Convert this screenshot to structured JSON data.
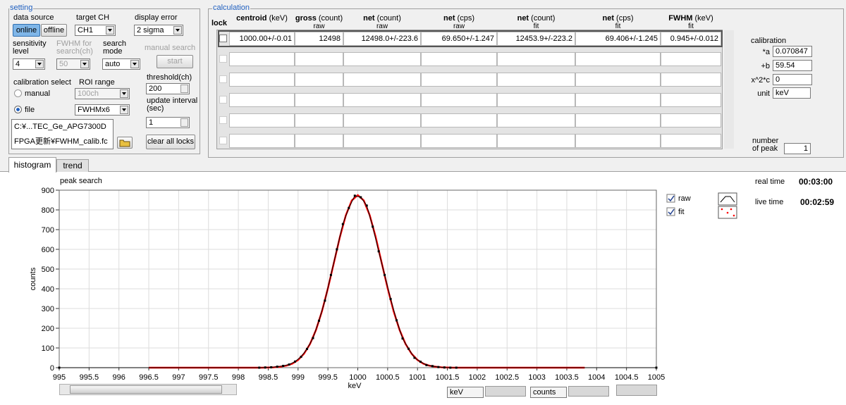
{
  "setting": {
    "title": "setting",
    "data_source": {
      "label": "data source",
      "online": "online",
      "offline": "offline"
    },
    "target_ch": {
      "label": "target CH",
      "value": "CH1"
    },
    "display_error": {
      "label": "display error",
      "value": "2 sigma"
    },
    "sensitivity": {
      "label": "sensitivity level",
      "value": "4"
    },
    "fwhm_search": {
      "label": "FWHM for search(ch)",
      "value": "50"
    },
    "search_mode": {
      "label": "search mode",
      "value": "auto"
    },
    "manual_search": {
      "label": "manual search",
      "button": "start"
    },
    "calibration_select": {
      "label": "calibration select",
      "manual": "manual",
      "file": "file"
    },
    "roi_range": {
      "label": "ROI range",
      "manual_value": "100ch",
      "file_value": "FWHMx6"
    },
    "threshold": {
      "label": "threshold(ch)",
      "value": "200"
    },
    "update_interval": {
      "label": "update interval (sec)",
      "value": "1"
    },
    "file_path": [
      "C:¥...TEC_Ge_APG7300D",
      "FPGA更新¥FWHM_calib.fc"
    ],
    "clear_button": "clear all locks"
  },
  "calculation": {
    "title": "calculation",
    "lock": "lock",
    "columns": [
      {
        "name": "centroid",
        "unit": "(keV)"
      },
      {
        "name": "gross",
        "unit": "(count)",
        "sub": "raw"
      },
      {
        "name": "net",
        "unit": "(count)",
        "sub": "raw"
      },
      {
        "name": "net",
        "unit": "(cps)",
        "sub": "raw"
      },
      {
        "name": "net",
        "unit": "(count)",
        "sub": "fit"
      },
      {
        "name": "net",
        "unit": "(cps)",
        "sub": "fit"
      },
      {
        "name": "FWHM",
        "unit": "(keV)",
        "sub": "fit"
      }
    ],
    "rows": [
      [
        "1000.00+/-0.01",
        "12498",
        "12498.0+/-223.6",
        "69.650+/-1.247",
        "12453.9+/-223.2",
        "69.406+/-1.245",
        "0.945+/-0.012"
      ]
    ]
  },
  "calibration": {
    "title": "calibration",
    "a_label": "*a",
    "a": "0.070847",
    "b_label": "+b",
    "b": "59.54",
    "c_label": "x^2*c",
    "c": "0",
    "unit_label": "unit",
    "unit": "keV",
    "peaks_label": "number of peak",
    "peaks": "1"
  },
  "tabs": [
    "histogram",
    "trend"
  ],
  "times": {
    "real_label": "real time",
    "real": "00:03:00",
    "live_label": "live time",
    "live": "00:02:59"
  },
  "graph_controls": {
    "x_unit": "keV",
    "y_unit": "counts"
  },
  "chart_data": {
    "type": "line",
    "title": "peak search",
    "xlabel": "keV",
    "ylabel": "counts",
    "xlim": [
      995,
      1005
    ],
    "ylim": [
      0,
      900
    ],
    "xticks": [
      995,
      995.5,
      996,
      996.5,
      997,
      997.5,
      998,
      998.5,
      999,
      999.5,
      1000,
      1000.5,
      1001,
      1001.5,
      1002,
      1002.5,
      1003,
      1003.5,
      1004,
      1004.5,
      1005
    ],
    "yticks": [
      0,
      100,
      200,
      300,
      400,
      500,
      600,
      700,
      800,
      900
    ],
    "grid": true,
    "series": [
      {
        "name": "raw",
        "color": "#000000",
        "marker": "square",
        "x": [
          995,
          998.35,
          998.45,
          998.55,
          998.65,
          998.75,
          998.85,
          998.95,
          999.05,
          999.15,
          999.25,
          999.35,
          999.45,
          999.55,
          999.65,
          999.75,
          999.85,
          999.95,
          1000.05,
          1000.15,
          1000.25,
          1000.35,
          1000.45,
          1000.55,
          1000.65,
          1000.75,
          1000.85,
          1000.95,
          1001.05,
          1001.15,
          1001.25,
          1001.35,
          1001.45,
          1001.55,
          1001.65,
          1005
        ],
        "values": [
          0,
          0,
          1,
          2,
          5,
          9,
          16,
          31,
          55,
          95,
          150,
          238,
          340,
          470,
          600,
          728,
          810,
          872,
          864,
          822,
          715,
          590,
          470,
          348,
          240,
          148,
          96,
          50,
          30,
          13,
          8,
          3,
          1,
          0,
          0,
          0
        ]
      },
      {
        "name": "fit",
        "color": "#ff0000",
        "x": [
          996.5,
          997.5,
          998.4,
          998.5,
          998.6,
          998.7,
          998.8,
          998.9,
          999,
          999.1,
          999.2,
          999.3,
          999.4,
          999.5,
          999.6,
          999.7,
          999.8,
          999.9,
          1000,
          1000.1,
          1000.2,
          1000.3,
          1000.4,
          1000.5,
          1000.6,
          1000.7,
          1000.8,
          1000.9,
          1001,
          1001.1,
          1001.2,
          1001.3,
          1001.4,
          1001.5,
          1001.6,
          1002.5,
          1003.8
        ],
        "values": [
          0,
          0,
          0,
          1,
          2,
          5,
          10,
          20,
          39,
          71,
          120,
          191,
          286,
          403,
          532,
          662,
          773,
          848,
          875,
          848,
          773,
          662,
          532,
          403,
          286,
          191,
          120,
          71,
          39,
          20,
          10,
          5,
          2,
          1,
          0,
          0,
          0
        ]
      }
    ]
  }
}
